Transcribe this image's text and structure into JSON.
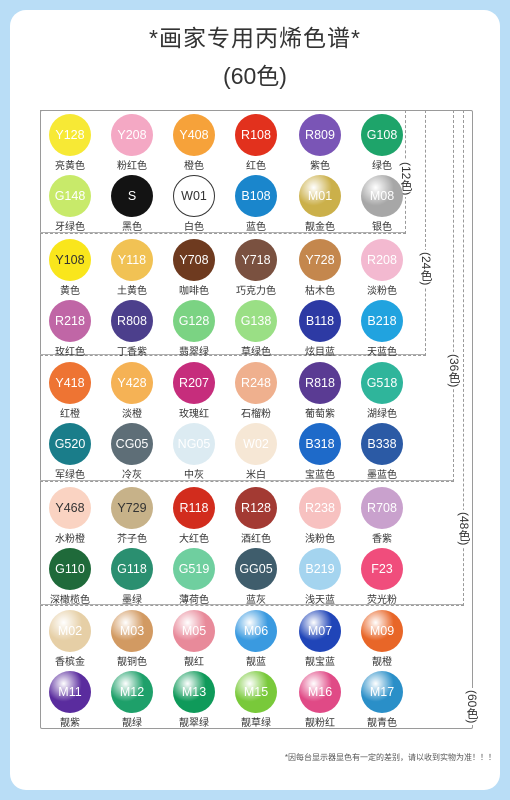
{
  "title": "*画家专用丙烯色谱*",
  "subtitle": "(60色)",
  "groups": [
    "(12色)",
    "(24色)",
    "(36色)",
    "(48色)",
    "(60色)"
  ],
  "footnote": "*因每台显示器显色有一定的差别，请以收到实物为准！！！",
  "colors": {
    "c0": {
      "code": "Y128",
      "name": "亮黄色",
      "fill": "#f7e935",
      "text": "#ffffff"
    },
    "c1": {
      "code": "Y208",
      "name": "粉红色",
      "fill": "#f4a8c4",
      "text": "#ffffff"
    },
    "c2": {
      "code": "Y408",
      "name": "橙色",
      "fill": "#f6a23a",
      "text": "#ffffff"
    },
    "c3": {
      "code": "R108",
      "name": "红色",
      "fill": "#e2311d",
      "text": "#ffffff"
    },
    "c4": {
      "code": "R809",
      "name": "紫色",
      "fill": "#7a55b6",
      "text": "#ffffff"
    },
    "c5": {
      "code": "G108",
      "name": "绿色",
      "fill": "#1ea46a",
      "text": "#ffffff"
    },
    "c6": {
      "code": "G148",
      "name": "牙绿色",
      "fill": "#c8ea6a",
      "text": "#ffffff"
    },
    "c7": {
      "code": "S",
      "name": "黑色",
      "fill": "#131313",
      "text": "#ffffff"
    },
    "c8": {
      "code": "W01",
      "name": "白色",
      "fill": "#ffffff",
      "text": "#333333"
    },
    "c9": {
      "code": "B108",
      "name": "蓝色",
      "fill": "#1a86cc",
      "text": "#ffffff"
    },
    "c10": {
      "code": "M01",
      "name": "靓金色",
      "fill": "#cbb04a",
      "text": "#ffffff"
    },
    "c11": {
      "code": "M08",
      "name": "银色",
      "fill": "#a7a7a7",
      "text": "#ffffff"
    },
    "c12": {
      "code": "Y108",
      "name": "黄色",
      "fill": "#f9e61c",
      "text": "#333333"
    },
    "c13": {
      "code": "Y118",
      "name": "土黄色",
      "fill": "#f1c254",
      "text": "#ffffff"
    },
    "c14": {
      "code": "Y708",
      "name": "咖啡色",
      "fill": "#6e3a1f",
      "text": "#ffffff"
    },
    "c15": {
      "code": "Y718",
      "name": "巧克力色",
      "fill": "#7a5140",
      "text": "#ffffff"
    },
    "c16": {
      "code": "Y728",
      "name": "枯木色",
      "fill": "#c4874d",
      "text": "#ffffff"
    },
    "c17": {
      "code": "R208",
      "name": "淡粉色",
      "fill": "#f3b9d0",
      "text": "#ffffff"
    },
    "c18": {
      "code": "R218",
      "name": "玫红色",
      "fill": "#c066a6",
      "text": "#ffffff"
    },
    "c19": {
      "code": "R808",
      "name": "丁香紫",
      "fill": "#4c3f8c",
      "text": "#ffffff"
    },
    "c20": {
      "code": "G128",
      "name": "翡翠绿",
      "fill": "#7bd383",
      "text": "#ffffff"
    },
    "c21": {
      "code": "G138",
      "name": "草绿色",
      "fill": "#9adf85",
      "text": "#ffffff"
    },
    "c22": {
      "code": "B118",
      "name": "炫目蓝",
      "fill": "#2d3aa4",
      "text": "#ffffff"
    },
    "c23": {
      "code": "B218",
      "name": "天蓝色",
      "fill": "#21a3df",
      "text": "#ffffff"
    },
    "c24": {
      "code": "Y418",
      "name": "红橙",
      "fill": "#ee7433",
      "text": "#ffffff"
    },
    "c25": {
      "code": "Y428",
      "name": "淡橙",
      "fill": "#f5b255",
      "text": "#ffffff"
    },
    "c26": {
      "code": "R207",
      "name": "玫瑰红",
      "fill": "#c62d7c",
      "text": "#ffffff"
    },
    "c27": {
      "code": "R248",
      "name": "石榴粉",
      "fill": "#efb08e",
      "text": "#ffffff"
    },
    "c28": {
      "code": "R818",
      "name": "葡萄紫",
      "fill": "#5a3b93",
      "text": "#ffffff"
    },
    "c29": {
      "code": "G518",
      "name": "湖绿色",
      "fill": "#2fb59b",
      "text": "#ffffff"
    },
    "c30": {
      "code": "G520",
      "name": "军绿色",
      "fill": "#1a7d8a",
      "text": "#ffffff"
    },
    "c31": {
      "code": "CG05",
      "name": "冷灰",
      "fill": "#5e6e77",
      "text": "#ffffff"
    },
    "c32": {
      "code": "NG05",
      "name": "中灰",
      "fill": "#dcebf2",
      "text": "#ffffff"
    },
    "c33": {
      "code": "W02",
      "name": "米白",
      "fill": "#f6e7d5",
      "text": "#ffffff"
    },
    "c34": {
      "code": "B318",
      "name": "宝蓝色",
      "fill": "#1e6ac9",
      "text": "#ffffff"
    },
    "c35": {
      "code": "B338",
      "name": "墨蓝色",
      "fill": "#2b5aa5",
      "text": "#ffffff"
    },
    "c36": {
      "code": "Y468",
      "name": "水粉橙",
      "fill": "#fad3c2",
      "text": "#333333"
    },
    "c37": {
      "code": "Y729",
      "name": "芥子色",
      "fill": "#c7b289",
      "text": "#333333"
    },
    "c38": {
      "code": "R118",
      "name": "大红色",
      "fill": "#d22c1d",
      "text": "#ffffff"
    },
    "c39": {
      "code": "R128",
      "name": "酒红色",
      "fill": "#a33a33",
      "text": "#ffffff"
    },
    "c40": {
      "code": "R238",
      "name": "浅粉色",
      "fill": "#f7c1c0",
      "text": "#ffffff"
    },
    "c41": {
      "code": "R708",
      "name": "香紫",
      "fill": "#c9a1cd",
      "text": "#ffffff"
    },
    "c42": {
      "code": "G110",
      "name": "深橄榄色",
      "fill": "#1f6a3a",
      "text": "#ffffff"
    },
    "c43": {
      "code": "G118",
      "name": "墨绿",
      "fill": "#2a8f70",
      "text": "#ffffff"
    },
    "c44": {
      "code": "G519",
      "name": "薄荷色",
      "fill": "#6fcf9f",
      "text": "#ffffff"
    },
    "c45": {
      "code": "GG05",
      "name": "蓝灰",
      "fill": "#3f5d6c",
      "text": "#ffffff"
    },
    "c46": {
      "code": "B219",
      "name": "浅天蓝",
      "fill": "#a4d4ef",
      "text": "#ffffff"
    },
    "c47": {
      "code": "F23",
      "name": "荧光粉",
      "fill": "#f04d7c",
      "text": "#ffffff"
    },
    "c48": {
      "code": "M02",
      "name": "香槟金",
      "fill": "#e6cfa6",
      "text": "#ffffff"
    },
    "c49": {
      "code": "M03",
      "name": "靓铜色",
      "fill": "#d29a62",
      "text": "#ffffff"
    },
    "c50": {
      "code": "M05",
      "name": "靓红",
      "fill": "#e88a9a",
      "text": "#ffffff"
    },
    "c51": {
      "code": "M06",
      "name": "靓蓝",
      "fill": "#3a9ae0",
      "text": "#ffffff"
    },
    "c52": {
      "code": "M07",
      "name": "靓宝蓝",
      "fill": "#2045b8",
      "text": "#ffffff"
    },
    "c53": {
      "code": "M09",
      "name": "靓橙",
      "fill": "#e86628",
      "text": "#ffffff"
    },
    "c54": {
      "code": "M11",
      "name": "靓紫",
      "fill": "#5a2c9e",
      "text": "#ffffff"
    },
    "c55": {
      "code": "M12",
      "name": "靓绿",
      "fill": "#1ea06a",
      "text": "#ffffff"
    },
    "c56": {
      "code": "M13",
      "name": "靓翠绿",
      "fill": "#0f9a5a",
      "text": "#ffffff"
    },
    "c57": {
      "code": "M15",
      "name": "靓草绿",
      "fill": "#79c93a",
      "text": "#ffffff"
    },
    "c58": {
      "code": "M16",
      "name": "靓粉红",
      "fill": "#e04a86",
      "text": "#ffffff"
    },
    "c59": {
      "code": "M17",
      "name": "靓青色",
      "fill": "#2a8fc8",
      "text": "#ffffff"
    }
  }
}
